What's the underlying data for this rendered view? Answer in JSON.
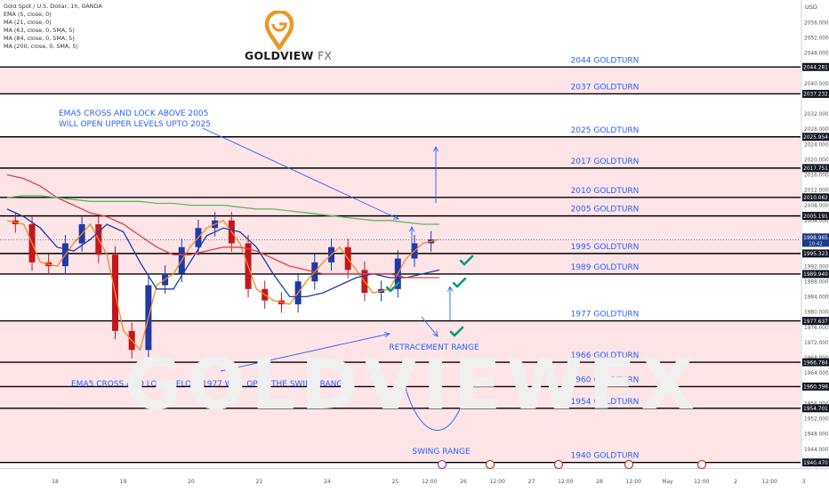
{
  "header": {
    "symbol": "Gold Spot / U.S. Dollar, 1h, OANDA",
    "indicators": [
      "EMA (5, close, 0)",
      "MA (21, close, 0)",
      "MA (63, close, 0, SMA, 5)",
      "MA (84, close, 0, SMA, 5)",
      "MA (200, close, 0, SMA, 5)"
    ]
  },
  "logo": {
    "brand": "GOLDVIEW",
    "suffix": "FX",
    "watermark": "GOLDVIEWFX"
  },
  "axis": {
    "currency": "USD"
  },
  "colors": {
    "zone": "#fde4e7",
    "up_candle": "#1f3aa6",
    "down_candle": "#c4161c",
    "ema5": "#f08a24",
    "ma21": "#1f3aa6",
    "ma63": "#e0404a",
    "ma200": "#5fb85a",
    "label_blue": "#2962ff",
    "check_green": "#089981",
    "price_tag": "#131722",
    "current_tag": "#1e3a8a"
  },
  "chart_data": {
    "type": "line",
    "title": "Gold Spot / U.S. Dollar, 1h, OANDA",
    "y_axis": {
      "range": [
        1939,
        2060
      ],
      "ticks": [
        2056.0,
        2052.0,
        2048.0,
        2040.0,
        2032.0,
        2028.0,
        2024.0,
        2020.0,
        2016.0,
        2012.0,
        2008.0,
        2004.0,
        1992.0,
        1988.0,
        1984.0,
        1980.0,
        1976.0,
        1972.0,
        1968.0,
        1964.0,
        1956.0,
        1952.0,
        1948.0,
        1944.0
      ]
    },
    "x_axis": {
      "ticks": [
        {
          "label": "18",
          "i": 0
        },
        {
          "label": "19",
          "i": 1
        },
        {
          "label": "20",
          "i": 2
        },
        {
          "label": "21",
          "i": 3
        },
        {
          "label": "24",
          "i": 4
        },
        {
          "label": "25",
          "i": 5
        },
        {
          "label": "12:00",
          "i": 5.5
        },
        {
          "label": "26",
          "i": 6
        },
        {
          "label": "12:00",
          "i": 6.5
        },
        {
          "label": "27",
          "i": 7
        },
        {
          "label": "12:00",
          "i": 7.5
        },
        {
          "label": "28",
          "i": 8
        },
        {
          "label": "12:00",
          "i": 8.5
        },
        {
          "label": "May",
          "i": 9
        },
        {
          "label": "12:00",
          "i": 9.5
        },
        {
          "label": "2",
          "i": 10
        },
        {
          "label": "12:00",
          "i": 10.5
        },
        {
          "label": "3",
          "i": 11
        }
      ]
    },
    "levels": [
      {
        "label": "2044 GOLDTURN",
        "price": 2044.281,
        "tag": "2044.281"
      },
      {
        "label": "2037 GOLDTURN",
        "price": 2037.232,
        "tag": "2037.232"
      },
      {
        "label": "2025 GOLDTURN",
        "price": 2025.954,
        "tag": "2025.954"
      },
      {
        "label": "2017 GOLDTURN",
        "price": 2017.751,
        "tag": "2017.751"
      },
      {
        "label": "2010 GOLDTURN",
        "price": 2010.062,
        "tag": "2010.062"
      },
      {
        "label": "2005 GOLDTURN",
        "price": 2005.191,
        "tag": "2005.191"
      },
      {
        "label": "1995 GOLDTURN",
        "price": 1995.323,
        "tag": "1995.323"
      },
      {
        "label": "1989 GOLDTURN",
        "price": 1989.94,
        "tag": "1989.940"
      },
      {
        "label": "1977 GOLDTURN",
        "price": 1977.637,
        "tag": "1977.637"
      },
      {
        "label": "1966 GOLDTURN",
        "price": 1966.784,
        "tag": "1966.784"
      },
      {
        "label": "1960 GOLDTURN",
        "price": 1960.398,
        "tag": "1960.398"
      },
      {
        "label": "1954 GOLDTURN",
        "price": 1954.701,
        "tag": "1954.701"
      },
      {
        "label": "1940 GOLDTURN",
        "price": 1940.47,
        "tag": "1940.470"
      }
    ],
    "zones": [
      [
        2037.232,
        2044.281
      ],
      [
        2005.191,
        2025.954
      ],
      [
        1995.323,
        2005.191
      ],
      [
        1989.94,
        1995.323
      ],
      [
        1966.784,
        1977.637
      ],
      [
        1960.398,
        1966.784
      ],
      [
        1954.701,
        1960.398
      ],
      [
        1940.47,
        1954.701
      ]
    ],
    "current_price": {
      "value": "1998.965",
      "countdown": "10:42"
    },
    "annotations": [
      "EMA5 CROSS AND LOCK ABOVE 2005",
      "WILL OPEN UPPER LEVELS UPTO 2025",
      "EMA5 CROSS AND LOCK BELOW 1977 WILL OPEN THE SWING RANGE",
      "RETRACEMENT RANGE",
      "SWING RANGE"
    ],
    "series": [
      {
        "key": "ema5",
        "values": [
          2004,
          2003,
          1993,
          1992,
          1998,
          2003,
          1995,
          1975,
          1970,
          1987,
          1990,
          1997,
          2002,
          2004,
          1998,
          1986,
          1983,
          1982,
          1988,
          1993,
          1997,
          1991,
          1985,
          1986,
          1994,
          1998,
          1999
        ]
      },
      {
        "key": "ma21",
        "values": [
          2007,
          2005,
          2002,
          1997,
          1996,
          1999,
          2003,
          2001,
          1993,
          1986,
          1986,
          1993,
          2000,
          2002,
          2001,
          1997,
          1990,
          1984,
          1984,
          1985,
          1987,
          1989,
          1990,
          1989,
          1989,
          1990,
          1991
        ]
      },
      {
        "key": "ma63",
        "values": [
          2016,
          2015,
          2013,
          2010,
          2008,
          2006,
          2005,
          2003,
          2000,
          1997,
          1995,
          1995,
          1996,
          1997,
          1997,
          1996,
          1994,
          1992,
          1991,
          1990,
          1990,
          1990,
          1990,
          1990,
          1989,
          1989,
          1989
        ]
      },
      {
        "key": "ma200",
        "values": [
          2010,
          2010.5,
          2010.5,
          2010,
          2009.5,
          2009,
          2009,
          2009,
          2009,
          2008.5,
          2008.5,
          2008,
          2008,
          2008,
          2007.5,
          2007,
          2007,
          2006.5,
          2006,
          2005.5,
          2005,
          2004.5,
          2004,
          2004,
          2003.5,
          2003,
          2003
        ]
      }
    ]
  }
}
